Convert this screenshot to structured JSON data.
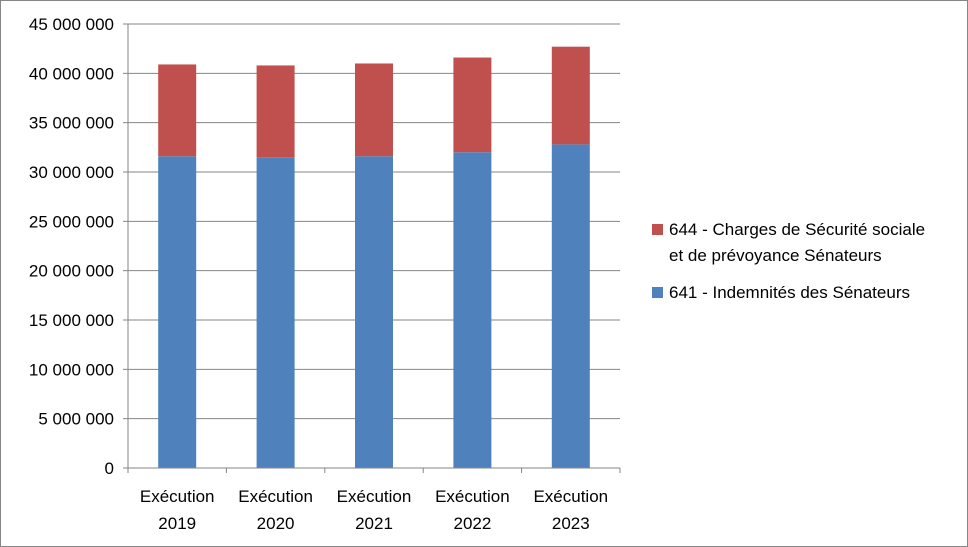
{
  "chart_data": {
    "type": "bar",
    "stacked": true,
    "title": "",
    "xlabel": "",
    "ylabel": "",
    "ylim": [
      0,
      45000000
    ],
    "y_ticks": [
      0,
      5000000,
      10000000,
      15000000,
      20000000,
      25000000,
      30000000,
      35000000,
      40000000,
      45000000
    ],
    "y_tick_labels": [
      "0",
      "5 000 000",
      "10 000 000",
      "15 000 000",
      "20 000 000",
      "25 000 000",
      "30 000 000",
      "35 000 000",
      "40 000 000",
      "45 000 000"
    ],
    "grid": true,
    "legend_position": "right",
    "categories": [
      [
        "Exécution",
        "2019"
      ],
      [
        "Exécution",
        "2020"
      ],
      [
        "Exécution",
        "2021"
      ],
      [
        "Exécution",
        "2022"
      ],
      [
        "Exécution",
        "2023"
      ]
    ],
    "series": [
      {
        "name": "641 - Indemnités des Sénateurs",
        "color": "#4F81BD",
        "values": [
          31600000,
          31500000,
          31600000,
          32000000,
          32800000
        ]
      },
      {
        "name": "644 - Charges de Sécurité sociale et de prévoyance Sénateurs",
        "legend_lines": [
          "644 - Charges de Sécurité sociale",
          "et de prévoyance Sénateurs"
        ],
        "color": "#C0504D",
        "values": [
          9300000,
          9300000,
          9400000,
          9600000,
          9900000
        ]
      }
    ]
  }
}
